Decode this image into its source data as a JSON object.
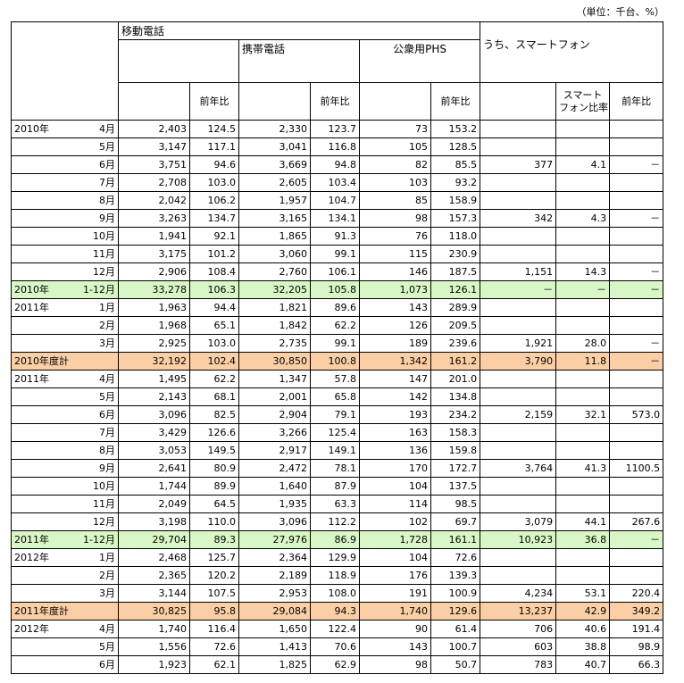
{
  "unit": "（単位：千台、%）",
  "header": {
    "mobile": "移動電話",
    "cellular": "携帯電話",
    "phs": "公衆用PHS",
    "smartphone": "うち、スマートフォン",
    "yoy": "前年比",
    "sp_ratio_1": "スマート",
    "sp_ratio_2": "フォン比率",
    "sp_yoy": "前年比"
  },
  "rows": [
    {
      "y": "2010年",
      "m": "4月",
      "c": [
        "2,403",
        "124.5",
        "2,330",
        "123.7",
        "73",
        "153.2",
        "",
        "",
        ""
      ]
    },
    {
      "y": "",
      "m": "5月",
      "c": [
        "3,147",
        "117.1",
        "3,041",
        "116.8",
        "105",
        "128.5",
        "",
        "",
        ""
      ]
    },
    {
      "y": "",
      "m": "6月",
      "c": [
        "3,751",
        "94.6",
        "3,669",
        "94.8",
        "82",
        "85.5",
        "377",
        "4.1",
        "－"
      ]
    },
    {
      "y": "",
      "m": "7月",
      "c": [
        "2,708",
        "103.0",
        "2,605",
        "103.4",
        "103",
        "93.2",
        "",
        "",
        ""
      ]
    },
    {
      "y": "",
      "m": "8月",
      "c": [
        "2,042",
        "106.2",
        "1,957",
        "104.7",
        "85",
        "158.9",
        "",
        "",
        ""
      ]
    },
    {
      "y": "",
      "m": "9月",
      "c": [
        "3,263",
        "134.7",
        "3,165",
        "134.1",
        "98",
        "157.3",
        "342",
        "4.3",
        "－"
      ]
    },
    {
      "y": "",
      "m": "10月",
      "c": [
        "1,941",
        "92.1",
        "1,865",
        "91.3",
        "76",
        "118.0",
        "",
        "",
        ""
      ]
    },
    {
      "y": "",
      "m": "11月",
      "c": [
        "3,175",
        "101.2",
        "3,060",
        "99.1",
        "115",
        "230.9",
        "",
        "",
        ""
      ]
    },
    {
      "y": "",
      "m": "12月",
      "c": [
        "2,906",
        "108.4",
        "2,760",
        "106.1",
        "146",
        "187.5",
        "1,151",
        "14.3",
        "－"
      ]
    },
    {
      "y": "2010年",
      "m": "1-12月",
      "hl": "green",
      "c": [
        "33,278",
        "106.3",
        "32,205",
        "105.8",
        "1,073",
        "126.1",
        "－",
        "－",
        "－"
      ]
    },
    {
      "y": "2011年",
      "m": "1月",
      "c": [
        "1,963",
        "94.4",
        "1,821",
        "89.6",
        "143",
        "289.9",
        "",
        "",
        ""
      ]
    },
    {
      "y": "",
      "m": "2月",
      "c": [
        "1,968",
        "65.1",
        "1,842",
        "62.2",
        "126",
        "209.5",
        "",
        "",
        ""
      ]
    },
    {
      "y": "",
      "m": "3月",
      "c": [
        "2,925",
        "103.0",
        "2,735",
        "99.1",
        "189",
        "239.6",
        "1,921",
        "28.0",
        "－"
      ]
    },
    {
      "y": "2010年度計",
      "m": "",
      "hl": "orange",
      "c": [
        "32,192",
        "102.4",
        "30,850",
        "100.8",
        "1,342",
        "161.2",
        "3,790",
        "11.8",
        "－"
      ]
    },
    {
      "y": "2011年",
      "m": "4月",
      "c": [
        "1,495",
        "62.2",
        "1,347",
        "57.8",
        "147",
        "201.0",
        "",
        "",
        ""
      ]
    },
    {
      "y": "",
      "m": "5月",
      "c": [
        "2,143",
        "68.1",
        "2,001",
        "65.8",
        "142",
        "134.8",
        "",
        "",
        ""
      ]
    },
    {
      "y": "",
      "m": "6月",
      "c": [
        "3,096",
        "82.5",
        "2,904",
        "79.1",
        "193",
        "234.2",
        "2,159",
        "32.1",
        "573.0"
      ]
    },
    {
      "y": "",
      "m": "7月",
      "c": [
        "3,429",
        "126.6",
        "3,266",
        "125.4",
        "163",
        "158.3",
        "",
        "",
        ""
      ]
    },
    {
      "y": "",
      "m": "8月",
      "c": [
        "3,053",
        "149.5",
        "2,917",
        "149.1",
        "136",
        "159.8",
        "",
        "",
        ""
      ]
    },
    {
      "y": "",
      "m": "9月",
      "c": [
        "2,641",
        "80.9",
        "2,472",
        "78.1",
        "170",
        "172.7",
        "3,764",
        "41.3",
        "1100.5"
      ]
    },
    {
      "y": "",
      "m": "10月",
      "c": [
        "1,744",
        "89.9",
        "1,640",
        "87.9",
        "104",
        "137.5",
        "",
        "",
        ""
      ]
    },
    {
      "y": "",
      "m": "11月",
      "c": [
        "2,049",
        "64.5",
        "1,935",
        "63.3",
        "114",
        "98.5",
        "",
        "",
        ""
      ]
    },
    {
      "y": "",
      "m": "12月",
      "c": [
        "3,198",
        "110.0",
        "3,096",
        "112.2",
        "102",
        "69.7",
        "3,079",
        "44.1",
        "267.6"
      ]
    },
    {
      "y": "2011年",
      "m": "1-12月",
      "hl": "green",
      "c": [
        "29,704",
        "89.3",
        "27,976",
        "86.9",
        "1,728",
        "161.1",
        "10,923",
        "36.8",
        "－"
      ]
    },
    {
      "y": "2012年",
      "m": "1月",
      "c": [
        "2,468",
        "125.7",
        "2,364",
        "129.9",
        "104",
        "72.6",
        "",
        "",
        ""
      ]
    },
    {
      "y": "",
      "m": "2月",
      "c": [
        "2,365",
        "120.2",
        "2,189",
        "118.9",
        "176",
        "139.3",
        "",
        "",
        ""
      ]
    },
    {
      "y": "",
      "m": "3月",
      "c": [
        "3,144",
        "107.5",
        "2,953",
        "108.0",
        "191",
        "100.9",
        "4,234",
        "53.1",
        "220.4"
      ]
    },
    {
      "y": "2011年度計",
      "m": "",
      "hl": "orange",
      "c": [
        "30,825",
        "95.8",
        "29,084",
        "94.3",
        "1,740",
        "129.6",
        "13,237",
        "42.9",
        "349.2"
      ]
    },
    {
      "y": "2012年",
      "m": "4月",
      "c": [
        "1,740",
        "116.4",
        "1,650",
        "122.4",
        "90",
        "61.4",
        "706",
        "40.6",
        "191.4"
      ]
    },
    {
      "y": "",
      "m": "5月",
      "c": [
        "1,556",
        "72.6",
        "1,413",
        "70.6",
        "143",
        "100.7",
        "603",
        "38.8",
        "98.9"
      ]
    },
    {
      "y": "",
      "m": "6月",
      "c": [
        "1,923",
        "62.1",
        "1,825",
        "62.9",
        "98",
        "50.7",
        "783",
        "40.7",
        "66.3"
      ]
    }
  ]
}
